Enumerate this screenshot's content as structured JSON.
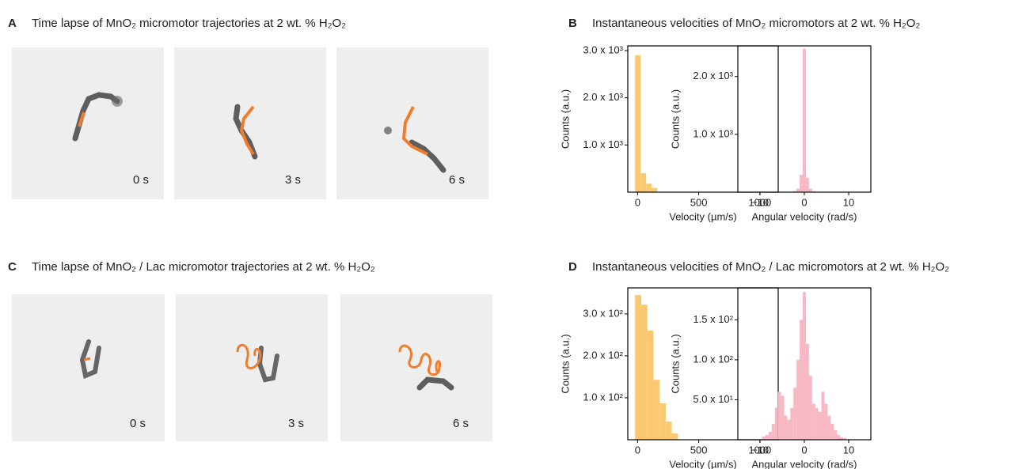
{
  "panels": [
    {
      "label": "A",
      "title": "Time lapse of MnO₂ micromotor trajectories at 2 wt. % H₂O₂",
      "frames": [
        "0 s",
        "3 s",
        "6 s"
      ]
    },
    {
      "label": "B",
      "title": "Instantaneous velocities of MnO₂ micromotors at 2 wt. % H₂O₂"
    },
    {
      "label": "C",
      "title": "Time lapse of MnO₂ / Lac micromotor trajectories at 2 wt. % H₂O₂",
      "frames": [
        "0 s",
        "3 s",
        "6 s"
      ]
    },
    {
      "label": "D",
      "title": "Instantaneous velocities of MnO₂ / Lac micromotors at 2 wt. % H₂O₂"
    }
  ],
  "chart_data": [
    {
      "type": "histogram",
      "color": "#f9c870",
      "xlabel": "Velocity (µm/s)",
      "ylabel": "Counts (a.u.)",
      "bins": [
        -20,
        25,
        70,
        115,
        160
      ],
      "values": [
        2900,
        400,
        180,
        90
      ],
      "xlim": [
        -80,
        1150
      ],
      "ylim": [
        0,
        3100
      ],
      "xticks": [
        0,
        500,
        1000
      ],
      "yticks": [
        {
          "value": 1000,
          "label": "1.0 x 10³"
        },
        {
          "value": 2000,
          "label": "2.0 x 10³"
        },
        {
          "value": 3000,
          "label": "3.0 x 10³"
        }
      ]
    },
    {
      "type": "histogram",
      "color": "#f7b7c3",
      "xlabel": "Angular velocity  (rad/s)",
      "ylabel": "Counts (a.u.)",
      "bins": [
        -2.45,
        -1.75,
        -1.05,
        -0.35,
        0.35,
        1.05,
        1.75,
        2.45
      ],
      "values": [
        20,
        60,
        300,
        2480,
        250,
        60,
        20
      ],
      "xlim": [
        -15,
        15
      ],
      "ylim": [
        0,
        2530
      ],
      "xticks": [
        {
          "value": -10,
          "label": "−10"
        },
        0,
        10
      ],
      "yticks": [
        {
          "value": 1000,
          "label": "1.0 x 10³"
        },
        {
          "value": 2000,
          "label": "2.0 x 10³"
        }
      ]
    },
    {
      "type": "histogram",
      "color": "#f9c870",
      "xlabel": "Velocity (µm/s)",
      "ylabel": "Counts (a.u.)",
      "bins": [
        -20,
        30,
        80,
        130,
        180,
        230,
        280,
        330
      ],
      "values": [
        345,
        322,
        260,
        143,
        87,
        43,
        15
      ],
      "xlim": [
        -80,
        1150
      ],
      "ylim": [
        0,
        362
      ],
      "xticks": [
        0,
        500,
        1000
      ],
      "yticks": [
        {
          "value": 100,
          "label": "1.0 x 10²"
        },
        {
          "value": 200,
          "label": "2.0 x 10²"
        },
        {
          "value": 300,
          "label": "3.0 x 10²"
        }
      ]
    },
    {
      "type": "histogram",
      "color": "#f7b7c3",
      "xlabel": "Angular velocity  (rad/s)",
      "ylabel": "Counts (a.u.)",
      "bins": [
        -9.45,
        -8.75,
        -8.05,
        -7.35,
        -6.65,
        -5.95,
        -5.25,
        -4.55,
        -3.85,
        -3.15,
        -2.45,
        -1.75,
        -1.05,
        -0.35,
        0.35,
        1.05,
        1.75,
        2.45,
        3.15,
        3.85,
        4.55,
        5.25,
        5.95,
        6.65,
        7.35,
        8.05,
        8.75,
        9.45
      ],
      "values": [
        4,
        6,
        10,
        20,
        40,
        60,
        55,
        30,
        25,
        40,
        65,
        100,
        150,
        185,
        120,
        80,
        45,
        40,
        35,
        60,
        45,
        30,
        20,
        12,
        6,
        3,
        2
      ],
      "xlim": [
        -15,
        15
      ],
      "ylim": [
        0,
        190
      ],
      "xticks": [
        {
          "value": -10,
          "label": "−10"
        },
        0,
        10
      ],
      "yticks": [
        {
          "value": 50,
          "label": "5.0 x 10¹"
        },
        {
          "value": 100,
          "label": "1.0 x 10²"
        },
        {
          "value": 150,
          "label": "1.5 x 10²"
        }
      ]
    }
  ]
}
